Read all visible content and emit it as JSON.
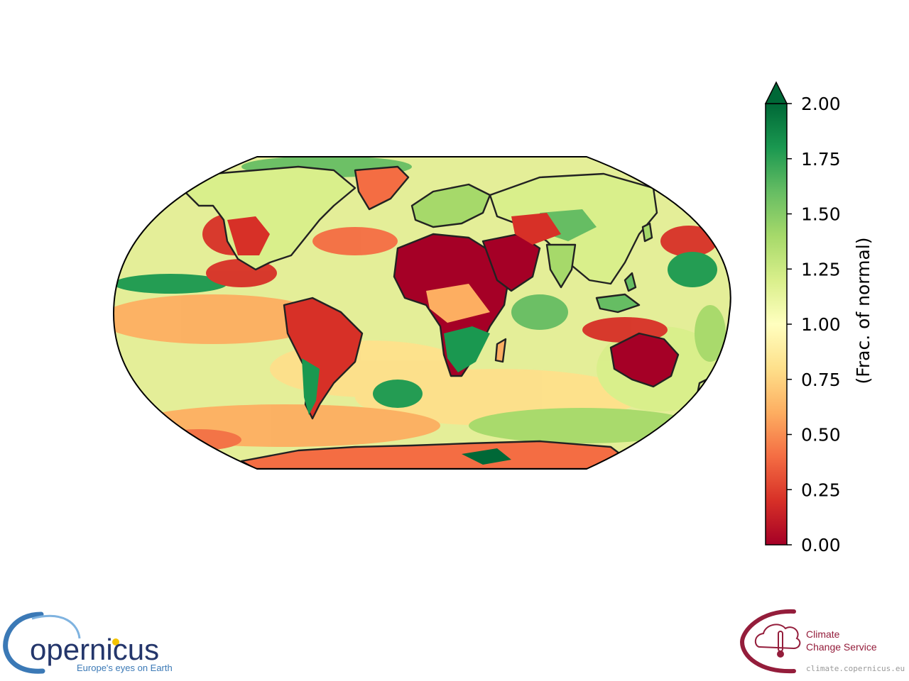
{
  "map": {
    "projection": "robinson",
    "field": "precipitation anomaly",
    "background_color": "#f2ef9a"
  },
  "colorbar": {
    "label": "(Frac. of normal)",
    "min": 0,
    "max": 2,
    "extend": "max",
    "ticks": [
      "0.00",
      "0.25",
      "0.50",
      "0.75",
      "1.00",
      "1.25",
      "1.50",
      "1.75",
      "2.00"
    ],
    "colormap": [
      "#a50026",
      "#d73027",
      "#f46d43",
      "#fdae61",
      "#fee08b",
      "#ffffbf",
      "#d9ef8b",
      "#a6d96a",
      "#66bd63",
      "#1a9850",
      "#006837"
    ]
  },
  "logos": {
    "copernicus": {
      "wordmark": "opernicus",
      "tagline": "Europe's eyes on Earth"
    },
    "c3s": {
      "line1": "Climate",
      "line2": "Change Service",
      "url": "climate.copernicus.eu"
    }
  }
}
